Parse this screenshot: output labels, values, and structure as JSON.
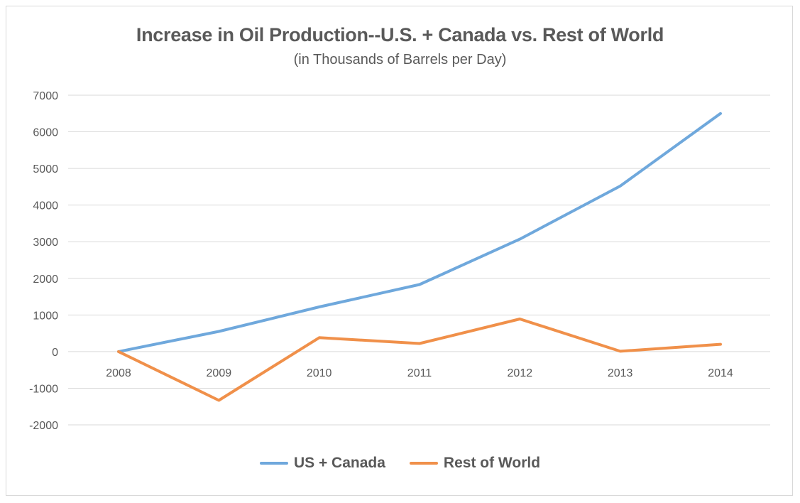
{
  "chart_data": {
    "type": "line",
    "title": "Increase in Oil Production--U.S. + Canada vs. Rest of World",
    "subtitle": "(in Thousands of Barrels per Day)",
    "xlabel": "",
    "ylabel": "",
    "categories": [
      "2008",
      "2009",
      "2010",
      "2011",
      "2012",
      "2013",
      "2014"
    ],
    "ylim": [
      -2000,
      7000
    ],
    "yticks": [
      7000,
      6000,
      5000,
      4000,
      3000,
      2000,
      1000,
      0,
      -1000,
      -2000
    ],
    "grid": true,
    "legend_position": "bottom",
    "series": [
      {
        "name": "US + Canada",
        "color": "#6fa8dc",
        "values": [
          0,
          550,
          1220,
          1830,
          3070,
          4520,
          6500
        ]
      },
      {
        "name": "Rest of World",
        "color": "#f0904a",
        "values": [
          0,
          -1330,
          380,
          220,
          890,
          10,
          200
        ]
      }
    ]
  }
}
